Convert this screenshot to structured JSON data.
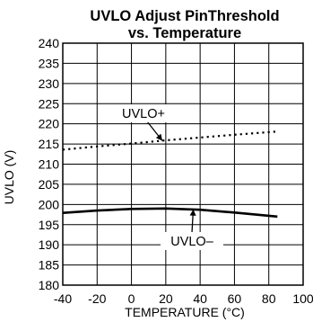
{
  "chart_data": {
    "type": "line",
    "title": "UVLO Adjust PinThreshold",
    "subtitle": "vs. Temperature",
    "xlabel": "TEMPERATURE (°C)",
    "ylabel": "UVLO (V)",
    "xlim": [
      -40,
      100
    ],
    "ylim": [
      180,
      240
    ],
    "xticks": [
      "-40",
      "-20",
      "0",
      "20",
      "40",
      "60",
      "80",
      "100"
    ],
    "yticks": [
      "240",
      "235",
      "230",
      "225",
      "220",
      "215",
      "210",
      "205",
      "200",
      "195",
      "190",
      "185",
      "180"
    ],
    "grid": true,
    "series": [
      {
        "name": "UVLO+",
        "style": "dotted",
        "x": [
          -40,
          -20,
          0,
          20,
          40,
          60,
          85
        ],
        "y": [
          213.6,
          214.4,
          215.1,
          215.9,
          216.6,
          217.3,
          218.1
        ]
      },
      {
        "name": "UVLO–",
        "style": "solid",
        "x": [
          -40,
          -20,
          0,
          20,
          40,
          60,
          85
        ],
        "y": [
          197.9,
          198.5,
          198.9,
          199.0,
          198.7,
          198.0,
          197.0
        ]
      }
    ],
    "annotations": [
      {
        "text": "UVLO+",
        "arrow_to": {
          "x": 18,
          "y": 215.8
        }
      },
      {
        "text": "UVLO–",
        "arrow_to": {
          "x": 36,
          "y": 198.8
        }
      }
    ]
  }
}
